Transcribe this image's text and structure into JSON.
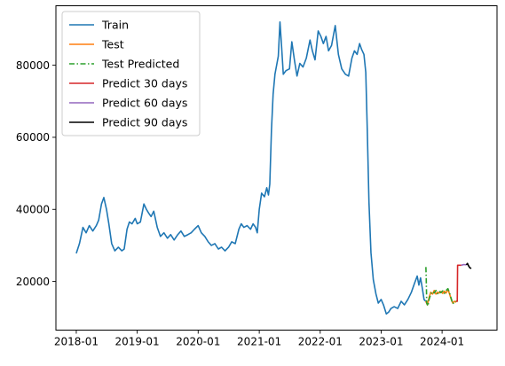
{
  "chart_data": {
    "type": "line",
    "title": "",
    "xlabel": "",
    "ylabel": "",
    "xlim": [
      "2017-09-01",
      "2024-11-25"
    ],
    "ylim": [
      6500,
      96500
    ],
    "x_ticks": [
      "2018-01",
      "2019-01",
      "2020-01",
      "2021-01",
      "2022-01",
      "2023-01",
      "2024-01"
    ],
    "y_ticks": [
      20000,
      40000,
      60000,
      80000
    ],
    "grid": false,
    "legend_position": "top-left",
    "series": [
      {
        "name": "Train",
        "color": "#1f77b4",
        "style": "solid",
        "points": [
          [
            "2018-01-01",
            27800
          ],
          [
            "2018-01-20",
            30500
          ],
          [
            "2018-02-10",
            35000
          ],
          [
            "2018-03-01",
            33500
          ],
          [
            "2018-03-20",
            35500
          ],
          [
            "2018-04-10",
            34000
          ],
          [
            "2018-05-01",
            35500
          ],
          [
            "2018-05-15",
            37000
          ],
          [
            "2018-06-01",
            41500
          ],
          [
            "2018-06-15",
            43300
          ],
          [
            "2018-07-01",
            40000
          ],
          [
            "2018-07-15",
            36000
          ],
          [
            "2018-08-01",
            30500
          ],
          [
            "2018-08-20",
            28500
          ],
          [
            "2018-09-10",
            29500
          ],
          [
            "2018-10-01",
            28500
          ],
          [
            "2018-10-15",
            29000
          ],
          [
            "2018-11-01",
            34500
          ],
          [
            "2018-11-15",
            36500
          ],
          [
            "2018-12-01",
            36000
          ],
          [
            "2018-12-20",
            37500
          ],
          [
            "2019-01-01",
            36000
          ],
          [
            "2019-01-20",
            36500
          ],
          [
            "2019-02-10",
            41500
          ],
          [
            "2019-02-25",
            40000
          ],
          [
            "2019-03-10",
            39000
          ],
          [
            "2019-03-25",
            38000
          ],
          [
            "2019-04-10",
            39500
          ],
          [
            "2019-05-01",
            35000
          ],
          [
            "2019-05-20",
            32500
          ],
          [
            "2019-06-10",
            33500
          ],
          [
            "2019-07-01",
            32000
          ],
          [
            "2019-07-20",
            33000
          ],
          [
            "2019-08-10",
            31500
          ],
          [
            "2019-09-01",
            33000
          ],
          [
            "2019-09-20",
            34000
          ],
          [
            "2019-10-10",
            32500
          ],
          [
            "2019-11-01",
            33000
          ],
          [
            "2019-11-20",
            33500
          ],
          [
            "2019-12-10",
            34500
          ],
          [
            "2020-01-01",
            35500
          ],
          [
            "2020-01-20",
            33500
          ],
          [
            "2020-02-10",
            32500
          ],
          [
            "2020-03-01",
            31000
          ],
          [
            "2020-03-20",
            30000
          ],
          [
            "2020-04-10",
            30500
          ],
          [
            "2020-05-01",
            29000
          ],
          [
            "2020-05-20",
            29500
          ],
          [
            "2020-06-10",
            28500
          ],
          [
            "2020-07-01",
            29500
          ],
          [
            "2020-07-20",
            31000
          ],
          [
            "2020-08-10",
            30500
          ],
          [
            "2020-09-01",
            34500
          ],
          [
            "2020-09-15",
            36000
          ],
          [
            "2020-10-01",
            35000
          ],
          [
            "2020-10-20",
            35500
          ],
          [
            "2020-11-10",
            34500
          ],
          [
            "2020-11-25",
            36000
          ],
          [
            "2020-12-10",
            35000
          ],
          [
            "2020-12-20",
            33500
          ],
          [
            "2021-01-01",
            40000
          ],
          [
            "2021-01-15",
            44500
          ],
          [
            "2021-02-01",
            43500
          ],
          [
            "2021-02-15",
            46000
          ],
          [
            "2021-02-25",
            44000
          ],
          [
            "2021-03-05",
            47000
          ],
          [
            "2021-03-15",
            62000
          ],
          [
            "2021-03-25",
            72000
          ],
          [
            "2021-04-05",
            77500
          ],
          [
            "2021-04-15",
            80000
          ],
          [
            "2021-04-25",
            82500
          ],
          [
            "2021-05-05",
            92000
          ],
          [
            "2021-05-15",
            85000
          ],
          [
            "2021-05-25",
            77500
          ],
          [
            "2021-06-10",
            78500
          ],
          [
            "2021-07-01",
            79000
          ],
          [
            "2021-07-15",
            86500
          ],
          [
            "2021-08-01",
            81000
          ],
          [
            "2021-08-15",
            77000
          ],
          [
            "2021-09-01",
            80500
          ],
          [
            "2021-09-20",
            79500
          ],
          [
            "2021-10-10",
            82000
          ],
          [
            "2021-11-01",
            87000
          ],
          [
            "2021-11-15",
            84000
          ],
          [
            "2021-12-01",
            81500
          ],
          [
            "2021-12-20",
            89500
          ],
          [
            "2022-01-05",
            88000
          ],
          [
            "2022-01-20",
            86000
          ],
          [
            "2022-02-05",
            88000
          ],
          [
            "2022-02-20",
            84000
          ],
          [
            "2022-03-10",
            85500
          ],
          [
            "2022-04-01",
            91000
          ],
          [
            "2022-04-20",
            83000
          ],
          [
            "2022-05-10",
            79000
          ],
          [
            "2022-06-01",
            77500
          ],
          [
            "2022-06-20",
            77000
          ],
          [
            "2022-07-10",
            82000
          ],
          [
            "2022-07-25",
            84000
          ],
          [
            "2022-08-10",
            83000
          ],
          [
            "2022-08-25",
            86000
          ],
          [
            "2022-09-05",
            84500
          ],
          [
            "2022-09-20",
            83000
          ],
          [
            "2022-10-01",
            78000
          ],
          [
            "2022-10-10",
            62000
          ],
          [
            "2022-10-20",
            42000
          ],
          [
            "2022-11-01",
            28000
          ],
          [
            "2022-11-15",
            20500
          ],
          [
            "2022-12-01",
            16500
          ],
          [
            "2022-12-15",
            14000
          ],
          [
            "2023-01-01",
            15000
          ],
          [
            "2023-01-15",
            13500
          ],
          [
            "2023-02-01",
            11000
          ],
          [
            "2023-02-15",
            11500
          ],
          [
            "2023-03-01",
            12500
          ],
          [
            "2023-03-20",
            13000
          ],
          [
            "2023-04-10",
            12500
          ],
          [
            "2023-05-01",
            14500
          ],
          [
            "2023-05-20",
            13500
          ],
          [
            "2023-06-10",
            15000
          ],
          [
            "2023-07-01",
            17000
          ],
          [
            "2023-07-20",
            19500
          ],
          [
            "2023-08-05",
            21500
          ],
          [
            "2023-08-15",
            19000
          ],
          [
            "2023-08-25",
            21000
          ],
          [
            "2023-09-05",
            18000
          ],
          [
            "2023-09-15",
            15000
          ],
          [
            "2023-09-25",
            14500
          ]
        ]
      },
      {
        "name": "Test",
        "color": "#ff7f0e",
        "style": "solid",
        "points": [
          [
            "2023-09-25",
            14500
          ],
          [
            "2023-10-05",
            13500
          ],
          [
            "2023-10-15",
            15500
          ],
          [
            "2023-10-25",
            17000
          ],
          [
            "2023-11-05",
            16500
          ],
          [
            "2023-11-15",
            17500
          ],
          [
            "2023-11-25",
            16500
          ],
          [
            "2023-12-05",
            17000
          ],
          [
            "2023-12-15",
            16800
          ],
          [
            "2023-12-25",
            17200
          ],
          [
            "2024-01-05",
            16700
          ],
          [
            "2024-01-15",
            17300
          ],
          [
            "2024-01-25",
            16800
          ],
          [
            "2024-02-05",
            17800
          ],
          [
            "2024-02-15",
            16500
          ],
          [
            "2024-02-25",
            15000
          ],
          [
            "2024-03-05",
            14000
          ],
          [
            "2024-03-15",
            14500
          ],
          [
            "2024-03-25",
            14200
          ]
        ]
      },
      {
        "name": "Test Predicted",
        "color": "#2ca02c",
        "style": "dashdot",
        "points": [
          [
            "2023-09-26",
            24000
          ],
          [
            "2023-09-28",
            21000
          ],
          [
            "2023-10-01",
            14000
          ],
          [
            "2023-10-08",
            13200
          ],
          [
            "2023-10-15",
            15000
          ],
          [
            "2023-10-25",
            16500
          ],
          [
            "2023-11-05",
            17200
          ],
          [
            "2023-11-15",
            16800
          ],
          [
            "2023-11-25",
            17500
          ],
          [
            "2023-12-05",
            16600
          ],
          [
            "2023-12-15",
            17300
          ],
          [
            "2023-12-25",
            16900
          ],
          [
            "2024-01-05",
            17400
          ],
          [
            "2024-01-15",
            16700
          ],
          [
            "2024-01-25",
            17500
          ],
          [
            "2024-02-05",
            18000
          ],
          [
            "2024-02-15",
            16800
          ],
          [
            "2024-02-25",
            15200
          ],
          [
            "2024-03-05",
            13800
          ],
          [
            "2024-03-15",
            14300
          ],
          [
            "2024-03-25",
            14500
          ]
        ]
      },
      {
        "name": "Predict 30 days",
        "color": "#d62728",
        "style": "solid",
        "points": [
          [
            "2024-03-25",
            14500
          ],
          [
            "2024-04-01",
            14500
          ],
          [
            "2024-04-03",
            24500
          ],
          [
            "2024-04-25",
            24500
          ]
        ]
      },
      {
        "name": "Predict 60 days",
        "color": "#9467bd",
        "style": "solid",
        "points": [
          [
            "2024-04-25",
            24500
          ],
          [
            "2024-05-10",
            24700
          ],
          [
            "2024-05-25",
            24600
          ]
        ]
      },
      {
        "name": "Predict 90 days",
        "color": "#000000",
        "style": "solid",
        "points": [
          [
            "2024-05-25",
            24600
          ],
          [
            "2024-06-01",
            25000
          ],
          [
            "2024-06-08",
            24300
          ],
          [
            "2024-06-15",
            23800
          ],
          [
            "2024-06-24",
            23600
          ]
        ]
      }
    ]
  }
}
